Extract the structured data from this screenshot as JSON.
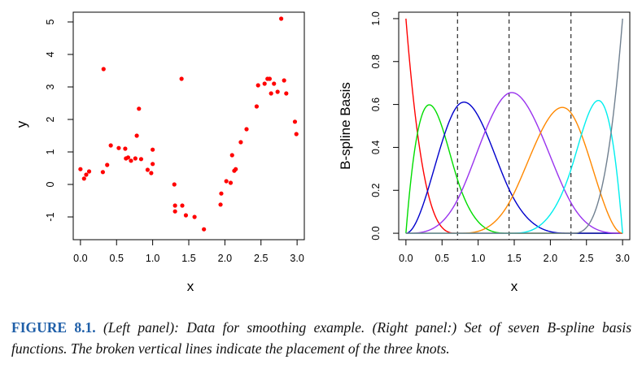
{
  "caption": {
    "label": "FIGURE 8.1.",
    "text": "(Left panel): Data for smoothing example. (Right panel:) Set of seven B-spline basis functions. The broken vertical lines indicate the placement of the three knots."
  },
  "chart_data": [
    {
      "type": "scatter",
      "xlabel": "x",
      "ylabel": "y",
      "xlim": [
        -0.1,
        3.1
      ],
      "ylim": [
        -1.7,
        5.3
      ],
      "xticks": [
        "0.0",
        "0.5",
        "1.0",
        "1.5",
        "2.0",
        "2.5",
        "3.0"
      ],
      "yticks": [
        "-1",
        "0",
        "1",
        "2",
        "3",
        "4",
        "5"
      ],
      "point_color": "#ff0000",
      "points": [
        [
          0.0,
          0.47
        ],
        [
          0.05,
          0.18
        ],
        [
          0.08,
          0.3
        ],
        [
          0.12,
          0.4
        ],
        [
          0.31,
          0.38
        ],
        [
          0.32,
          3.55
        ],
        [
          0.37,
          0.6
        ],
        [
          0.42,
          1.2
        ],
        [
          0.53,
          1.12
        ],
        [
          0.62,
          1.1
        ],
        [
          0.63,
          0.8
        ],
        [
          0.66,
          0.83
        ],
        [
          0.7,
          0.73
        ],
        [
          0.76,
          0.8
        ],
        [
          0.78,
          1.5
        ],
        [
          0.81,
          2.33
        ],
        [
          0.84,
          0.78
        ],
        [
          0.93,
          0.45
        ],
        [
          0.98,
          0.35
        ],
        [
          1.0,
          1.07
        ],
        [
          1.0,
          0.63
        ],
        [
          1.3,
          0.0
        ],
        [
          1.31,
          -0.65
        ],
        [
          1.31,
          -0.83
        ],
        [
          1.4,
          3.25
        ],
        [
          1.41,
          -0.65
        ],
        [
          1.46,
          -0.95
        ],
        [
          1.58,
          -1.0
        ],
        [
          1.71,
          -1.38
        ],
        [
          1.94,
          -0.62
        ],
        [
          1.95,
          -0.28
        ],
        [
          2.02,
          0.1
        ],
        [
          2.08,
          0.05
        ],
        [
          2.1,
          0.9
        ],
        [
          2.13,
          0.42
        ],
        [
          2.15,
          0.47
        ],
        [
          2.22,
          1.3
        ],
        [
          2.3,
          1.7
        ],
        [
          2.44,
          2.4
        ],
        [
          2.46,
          3.05
        ],
        [
          2.55,
          3.1
        ],
        [
          2.59,
          3.25
        ],
        [
          2.62,
          3.25
        ],
        [
          2.64,
          2.8
        ],
        [
          2.68,
          3.1
        ],
        [
          2.73,
          2.85
        ],
        [
          2.78,
          5.1
        ],
        [
          2.82,
          3.2
        ],
        [
          2.85,
          2.8
        ],
        [
          2.97,
          1.93
        ],
        [
          2.99,
          1.55
        ]
      ]
    },
    {
      "type": "line",
      "xlabel": "x",
      "ylabel": "B-spline Basis",
      "xlim": [
        -0.1,
        3.1
      ],
      "ylim": [
        -0.03,
        1.03
      ],
      "xticks": [
        "0.0",
        "0.5",
        "1.0",
        "1.5",
        "2.0",
        "2.5",
        "3.0"
      ],
      "yticks": [
        "0.0",
        "0.2",
        "0.4",
        "0.6",
        "0.8",
        "1.0"
      ],
      "knots": [
        0.714,
        1.429,
        2.286
      ],
      "degree": 3,
      "boundary": [
        0.0,
        3.0
      ],
      "series_colors": [
        "#ff0000",
        "#00dd00",
        "#0000cc",
        "#9933ee",
        "#ff8800",
        "#00eeee",
        "#708090"
      ]
    }
  ]
}
